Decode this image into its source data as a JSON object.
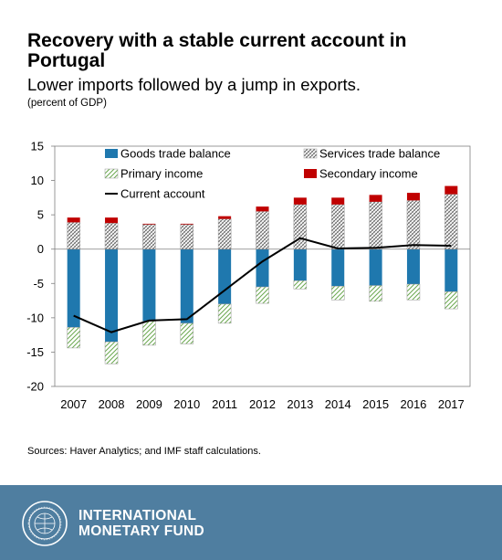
{
  "header": {
    "title": "Recovery with a stable current account in Portugal",
    "subtitle": "Lower imports followed by a jump in exports.",
    "unit": "(percent of GDP)"
  },
  "source": "Sources: Haver Analytics; and IMF staff calculations.",
  "footer": {
    "org_line1": "INTERNATIONAL",
    "org_line2": "MONETARY FUND"
  },
  "colors": {
    "goods": "#1f78ae",
    "services_hatch": "#555555",
    "primary_hatch": "#6aa84f",
    "secondary": "#c00000",
    "line": "#000000",
    "footer_bg": "#4f7ea0"
  },
  "chart_data": {
    "type": "bar",
    "stacked": true,
    "categories": [
      "2007",
      "2008",
      "2009",
      "2010",
      "2011",
      "2012",
      "2013",
      "2014",
      "2015",
      "2016",
      "2017"
    ],
    "ylim": [
      -20,
      15
    ],
    "yticks": [
      15,
      10,
      5,
      0,
      -5,
      -10,
      -15,
      -20
    ],
    "grid": false,
    "legend_position": "top",
    "series": [
      {
        "name": "Goods trade balance",
        "kind": "bar",
        "values": [
          -11.4,
          -13.5,
          -10.5,
          -10.8,
          -8.0,
          -5.5,
          -4.6,
          -5.4,
          -5.3,
          -5.1,
          -6.2
        ]
      },
      {
        "name": "Services trade balance",
        "kind": "bar",
        "values": [
          3.9,
          3.8,
          3.6,
          3.6,
          4.4,
          5.5,
          6.5,
          6.5,
          6.9,
          7.1,
          8.0
        ]
      },
      {
        "name": "Primary income",
        "kind": "bar",
        "values": [
          -3.0,
          -3.2,
          -3.5,
          -3.0,
          -2.8,
          -2.4,
          -1.2,
          -2.0,
          -2.3,
          -2.3,
          -2.5
        ]
      },
      {
        "name": "Secondary income",
        "kind": "bar",
        "values": [
          0.7,
          0.8,
          0.1,
          0.1,
          0.4,
          0.7,
          1.0,
          1.0,
          1.0,
          1.1,
          1.2
        ]
      },
      {
        "name": "Current account",
        "kind": "line",
        "values": [
          -9.7,
          -12.1,
          -10.4,
          -10.2,
          -6.0,
          -1.8,
          1.6,
          0.1,
          0.2,
          0.6,
          0.5
        ]
      }
    ]
  }
}
